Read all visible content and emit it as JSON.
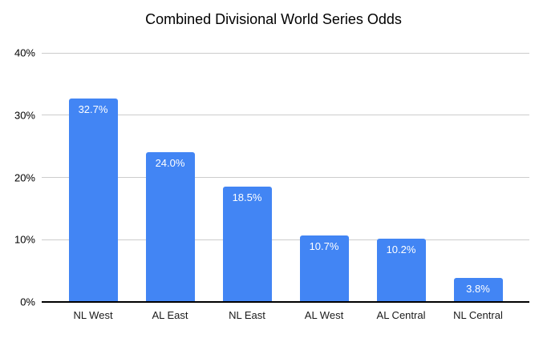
{
  "chart_data": {
    "type": "bar",
    "title": "Combined Divisional World Series Odds",
    "categories": [
      "NL West",
      "AL East",
      "NL East",
      "AL West",
      "AL Central",
      "NL Central"
    ],
    "values": [
      32.7,
      24.0,
      18.5,
      10.7,
      10.2,
      3.8
    ],
    "bar_labels": [
      "32.7%",
      "24.0%",
      "18.5%",
      "10.7%",
      "10.2%",
      "3.8%"
    ],
    "xlabel": "",
    "ylabel": "",
    "ylim": [
      0,
      40
    ],
    "y_tick_values": [
      0,
      10,
      20,
      30,
      40
    ],
    "y_tick_labels": [
      "0%",
      "10%",
      "20%",
      "30%",
      "40%"
    ],
    "grid": true,
    "legend_position": "none",
    "bar_color": "#4285f4",
    "bar_label_color": "#ffffff",
    "gridline_color": "#cccccc",
    "axis_color": "#000000"
  }
}
